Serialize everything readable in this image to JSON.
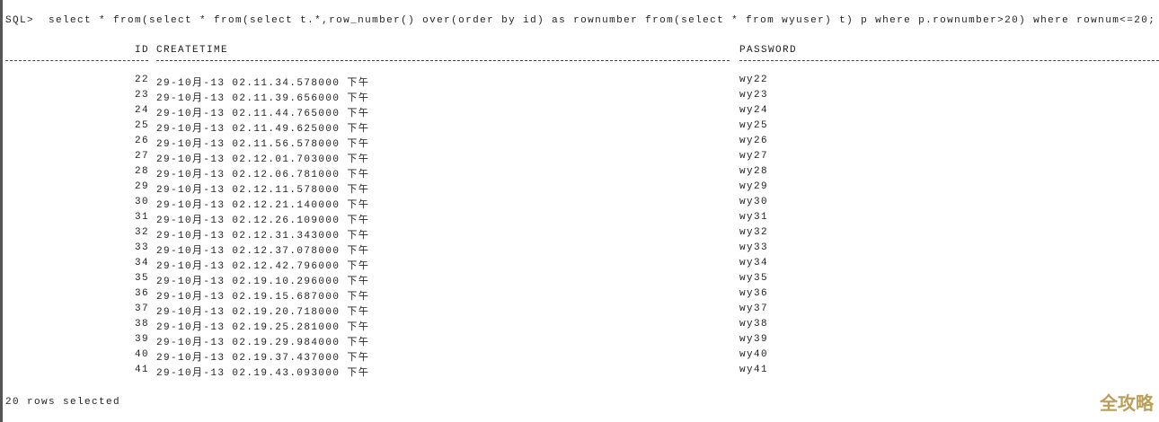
{
  "prompt": "SQL>",
  "query": "select * from(select * from(select t.*,row_number() over(order by id) as rownumber from(select * from wyuser) t) p where p.rownumber>20) where rownum<=20;",
  "columns": [
    "ID",
    "CREATETIME",
    "PASSWORD"
  ],
  "rows": [
    {
      "id": "22",
      "createtime": "29-10月-13 02.11.34.578000 下午",
      "password": "wy22"
    },
    {
      "id": "23",
      "createtime": "29-10月-13 02.11.39.656000 下午",
      "password": "wy23"
    },
    {
      "id": "24",
      "createtime": "29-10月-13 02.11.44.765000 下午",
      "password": "wy24"
    },
    {
      "id": "25",
      "createtime": "29-10月-13 02.11.49.625000 下午",
      "password": "wy25"
    },
    {
      "id": "26",
      "createtime": "29-10月-13 02.11.56.578000 下午",
      "password": "wy26"
    },
    {
      "id": "27",
      "createtime": "29-10月-13 02.12.01.703000 下午",
      "password": "wy27"
    },
    {
      "id": "28",
      "createtime": "29-10月-13 02.12.06.781000 下午",
      "password": "wy28"
    },
    {
      "id": "29",
      "createtime": "29-10月-13 02.12.11.578000 下午",
      "password": "wy29"
    },
    {
      "id": "30",
      "createtime": "29-10月-13 02.12.21.140000 下午",
      "password": "wy30"
    },
    {
      "id": "31",
      "createtime": "29-10月-13 02.12.26.109000 下午",
      "password": "wy31"
    },
    {
      "id": "32",
      "createtime": "29-10月-13 02.12.31.343000 下午",
      "password": "wy32"
    },
    {
      "id": "33",
      "createtime": "29-10月-13 02.12.37.078000 下午",
      "password": "wy33"
    },
    {
      "id": "34",
      "createtime": "29-10月-13 02.12.42.796000 下午",
      "password": "wy34"
    },
    {
      "id": "35",
      "createtime": "29-10月-13 02.19.10.296000 下午",
      "password": "wy35"
    },
    {
      "id": "36",
      "createtime": "29-10月-13 02.19.15.687000 下午",
      "password": "wy36"
    },
    {
      "id": "37",
      "createtime": "29-10月-13 02.19.20.718000 下午",
      "password": "wy37"
    },
    {
      "id": "38",
      "createtime": "29-10月-13 02.19.25.281000 下午",
      "password": "wy38"
    },
    {
      "id": "39",
      "createtime": "29-10月-13 02.19.29.984000 下午",
      "password": "wy39"
    },
    {
      "id": "40",
      "createtime": "29-10月-13 02.19.37.437000 下午",
      "password": "wy40"
    },
    {
      "id": "41",
      "createtime": "29-10月-13 02.19.43.093000 下午",
      "password": "wy41"
    }
  ],
  "footer": "20 rows selected",
  "watermark": "全攻略"
}
